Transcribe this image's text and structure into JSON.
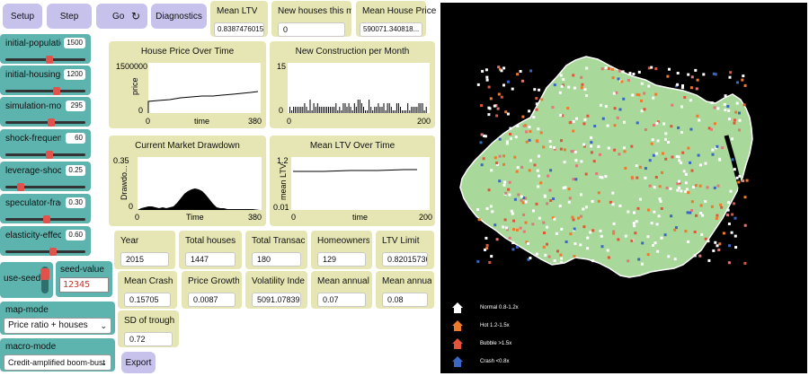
{
  "buttons": {
    "setup": "Setup",
    "step": "Step",
    "go": "Go",
    "go_icon": "↻",
    "diagnostics": "Diagnostics",
    "export": "Export"
  },
  "sliders": [
    {
      "label": "initial-population",
      "value": "1500",
      "fraction": 0.55
    },
    {
      "label": "initial-housing-...",
      "value": "1200",
      "fraction": 0.66
    },
    {
      "label": "simulation-months",
      "value": "295",
      "fraction": 0.58
    },
    {
      "label": "shock-frequency",
      "value": "60",
      "fraction": 0.55
    },
    {
      "label": "leverage-shock-...",
      "value": "0.25",
      "fraction": 0.16
    },
    {
      "label": "speculator-fraction",
      "value": "0.30",
      "fraction": 0.52
    },
    {
      "label": "elasticity-effect-on...",
      "value": "0.60",
      "fraction": 0.6
    }
  ],
  "switch": {
    "label": "use-seed?"
  },
  "seed": {
    "label": "seed-value",
    "value": "12345"
  },
  "choosers": {
    "map_mode": {
      "label": "map-mode",
      "value": "Price ratio + houses",
      "arrow": "⌄"
    },
    "macro_mode": {
      "label": "macro-mode",
      "value": "Credit-amplified boom-bust",
      "arrow": "⌄"
    }
  },
  "monitors_top": [
    {
      "label": "Mean LTV",
      "value": "0.8387476015..."
    },
    {
      "label": "New houses this mon...",
      "value": "0"
    },
    {
      "label": "Mean House Price",
      "value": "590071.340818..."
    }
  ],
  "monitors_row1": [
    {
      "label": "Year",
      "value": "2015"
    },
    {
      "label": "Total houses",
      "value": "1447"
    },
    {
      "label": "Total Transacti...",
      "value": "180"
    },
    {
      "label": "Homeowners",
      "value": "129"
    },
    {
      "label": "LTV Limit",
      "value": "0.820157361..."
    }
  ],
  "monitors_row2": [
    {
      "label": "Mean Crash D...",
      "value": "0.15705"
    },
    {
      "label": "Price Growth",
      "value": "0.0087"
    },
    {
      "label": "Volatility Index",
      "value": "5091.07839"
    },
    {
      "label": "Mean annual ...",
      "value": "0.07"
    },
    {
      "label": "Mean annual ...",
      "value": "0.08"
    }
  ],
  "monitors_row3": [
    {
      "label": "SD of trough ...",
      "value": "0.72"
    }
  ],
  "plots": {
    "house_price": {
      "title": "House Price Over Time",
      "ylabel": "price",
      "xlabel": "time",
      "ymax": "1500000",
      "ymin": "0",
      "xmin": "0",
      "xmax": "380"
    },
    "new_construction": {
      "title": "New Construction per Month",
      "ylabel": "",
      "xlabel": "",
      "ymax": "15",
      "ymin": "0",
      "xmin": "0",
      "xmax": "200"
    },
    "drawdown": {
      "title": "Current Market Drawdown",
      "ylabel": "Drawdo...",
      "xlabel": "Time",
      "ymax": "0.35",
      "ymin": "0",
      "xmin": "0",
      "xmax": "380"
    },
    "mean_ltv": {
      "title": "Mean LTV Over Time",
      "ylabel": "mean LTV",
      "xlabel": "time",
      "ymax": "1.2",
      "ymin": "0.01",
      "xmin": "0",
      "xmax": "200"
    }
  },
  "legend": [
    {
      "label": "Normal 0.8-1.2x",
      "color": "#ffffff"
    },
    {
      "label": "Hot 1.2-1.5x",
      "color": "#f07a2c"
    },
    {
      "label": "Bubble >1.5x",
      "color": "#e2553b"
    },
    {
      "label": "Crash <0.8x",
      "color": "#3a67c4"
    }
  ],
  "colors": {
    "button": "#c7c2ec",
    "slider": "#5db3ae",
    "monitor": "#e6e6b4",
    "map_bg": "#000000",
    "map_land": "#a8d89a"
  }
}
